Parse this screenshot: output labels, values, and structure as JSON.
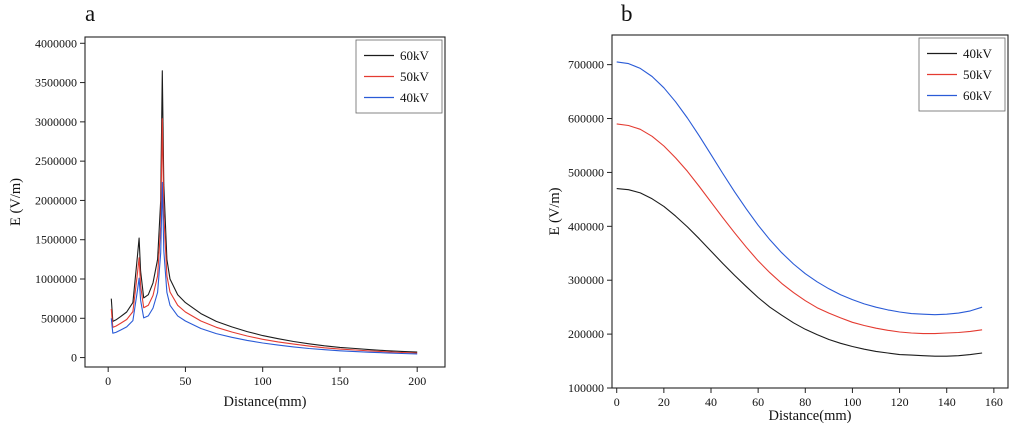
{
  "figure": {
    "background": "#ffffff"
  },
  "panels": [
    {
      "label": "a"
    },
    {
      "label": "b"
    }
  ],
  "chart_data": [
    {
      "id": "a",
      "type": "line",
      "title": "",
      "xlabel": "Distance(mm)",
      "ylabel": "E (V/m)",
      "xlim": [
        -15,
        218
      ],
      "ylim": [
        -120000,
        4080000
      ],
      "xticks": [
        0,
        50,
        100,
        150,
        200
      ],
      "yticks": [
        0,
        500000,
        1000000,
        1500000,
        2000000,
        2500000,
        3000000,
        3500000,
        4000000
      ],
      "grid": false,
      "legend_position": "top-right",
      "frame_color": "#222222",
      "x": [
        2,
        3,
        5,
        8,
        12,
        16,
        19,
        20,
        21,
        23,
        26,
        29,
        32,
        34,
        35,
        36,
        38,
        40,
        45,
        50,
        60,
        70,
        80,
        90,
        100,
        110,
        120,
        130,
        140,
        150,
        160,
        170,
        180,
        190,
        200
      ],
      "series": [
        {
          "name": "60kV",
          "color": "#1c1c1c",
          "values": [
            750000,
            460000,
            480000,
            520000,
            580000,
            700000,
            1300000,
            1520000,
            1100000,
            760000,
            800000,
            950000,
            1250000,
            2000000,
            3650000,
            2200000,
            1250000,
            1000000,
            800000,
            700000,
            560000,
            460000,
            390000,
            330000,
            280000,
            240000,
            205000,
            175000,
            150000,
            130000,
            115000,
            100000,
            88000,
            78000,
            70000
          ]
        },
        {
          "name": "50kV",
          "color": "#e43b31",
          "values": [
            620000,
            385000,
            400000,
            435000,
            485000,
            585000,
            1080000,
            1270000,
            915000,
            635000,
            665000,
            790000,
            1040000,
            1670000,
            3040000,
            1830000,
            1040000,
            835000,
            665000,
            580000,
            465000,
            385000,
            325000,
            275000,
            233000,
            200000,
            171000,
            146000,
            125000,
            108000,
            96000,
            84000,
            74000,
            65000,
            58000
          ]
        },
        {
          "name": "40kV",
          "color": "#2a5bd7",
          "values": [
            500000,
            310000,
            320000,
            350000,
            390000,
            470000,
            860000,
            1010000,
            730000,
            505000,
            530000,
            630000,
            830000,
            1330000,
            2230000,
            1360000,
            830000,
            665000,
            530000,
            465000,
            370000,
            305000,
            258000,
            218000,
            185000,
            159000,
            136000,
            116000,
            100000,
            86000,
            76000,
            67000,
            59000,
            52000,
            47000
          ]
        }
      ]
    },
    {
      "id": "b",
      "type": "line",
      "title": "",
      "xlabel": "Distance(mm)",
      "ylabel": "E (V/m)",
      "xlim": [
        -2,
        166
      ],
      "ylim": [
        100000,
        755000
      ],
      "xticks": [
        0,
        20,
        40,
        60,
        80,
        100,
        120,
        140,
        160
      ],
      "yticks": [
        100000,
        200000,
        300000,
        400000,
        500000,
        600000,
        700000
      ],
      "grid": false,
      "legend_position": "top-right",
      "frame_color": "#222222",
      "x": [
        0,
        5,
        10,
        15,
        20,
        25,
        30,
        35,
        40,
        45,
        50,
        55,
        60,
        65,
        70,
        75,
        80,
        85,
        90,
        95,
        100,
        105,
        110,
        115,
        120,
        125,
        130,
        135,
        140,
        145,
        150,
        155
      ],
      "series": [
        {
          "name": "40kV",
          "color": "#1c1c1c",
          "values": [
            470000,
            468000,
            462000,
            451000,
            437000,
            419000,
            399000,
            377000,
            354000,
            331000,
            309000,
            288000,
            268000,
            250000,
            235000,
            221000,
            209000,
            199000,
            190000,
            183000,
            177000,
            172000,
            168000,
            165000,
            162000,
            161000,
            160000,
            159000,
            159000,
            160000,
            162000,
            165000
          ]
        },
        {
          "name": "50kV",
          "color": "#e43b31",
          "values": [
            590000,
            587000,
            580000,
            567000,
            549000,
            527000,
            502000,
            474000,
            445000,
            416000,
            388000,
            361000,
            336000,
            314000,
            294000,
            277000,
            262000,
            249000,
            239000,
            230000,
            222000,
            216000,
            211000,
            207000,
            204000,
            202000,
            201000,
            201000,
            202000,
            203000,
            205000,
            208000
          ]
        },
        {
          "name": "60kV",
          "color": "#2a5bd7",
          "values": [
            705000,
            702000,
            693000,
            678000,
            657000,
            631000,
            601000,
            568000,
            533000,
            498000,
            464000,
            432000,
            402000,
            375000,
            351000,
            330000,
            312000,
            297000,
            284000,
            273000,
            264000,
            256000,
            250000,
            245000,
            241000,
            238000,
            237000,
            236000,
            237000,
            239000,
            243000,
            250000
          ]
        }
      ]
    }
  ]
}
